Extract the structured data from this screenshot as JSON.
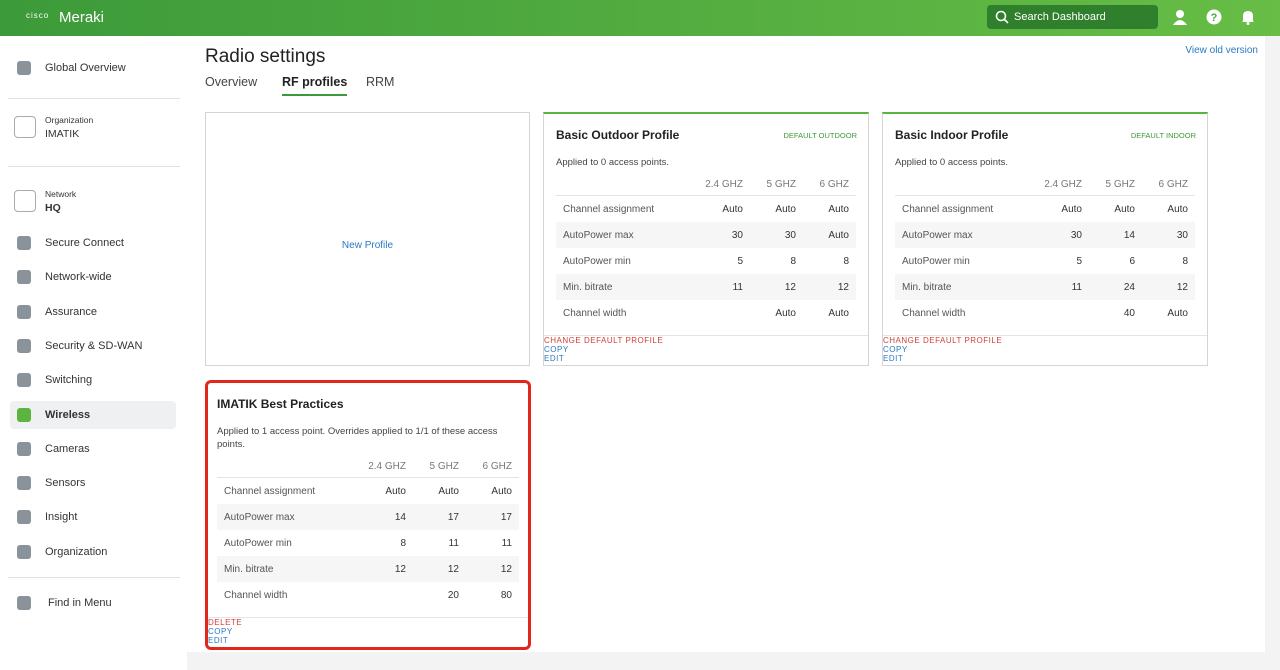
{
  "header": {
    "logo": "cisco",
    "brand": "Meraki",
    "search": "Search Dashboard"
  },
  "sidebar": {
    "top": "Global Overview",
    "org_label": "Organization",
    "org_name": "IMATIK",
    "net_label": "Network",
    "net_name": "HQ",
    "items": [
      "Secure Connect",
      "Network-wide",
      "Assurance",
      "Security & SD-WAN",
      "Switching",
      "Wireless",
      "Cameras",
      "Sensors",
      "Insight",
      "Organization"
    ],
    "active": 5,
    "find": "Find in Menu"
  },
  "page": {
    "title": "Radio settings",
    "view_old": "View old version",
    "tabs": [
      "Overview",
      "RF profiles",
      "RRM"
    ],
    "active_tab": 1,
    "new_profile": "New Profile"
  },
  "profiles": [
    {
      "name": "Basic Outdoor Profile",
      "badge": "DEFAULT OUTDOOR",
      "applied": "Applied to 0 access points.",
      "columns": [
        "2.4 GHZ",
        "5 GHZ",
        "6 GHZ"
      ],
      "rows": [
        {
          "label": "Channel assignment",
          "values": [
            "Auto",
            "Auto",
            "Auto"
          ]
        },
        {
          "label": "AutoPower max",
          "values": [
            30,
            30,
            "Auto"
          ]
        },
        {
          "label": "AutoPower min",
          "values": [
            5,
            8,
            8
          ]
        },
        {
          "label": "Min. bitrate",
          "values": [
            11,
            12,
            12
          ]
        },
        {
          "label": "Channel width",
          "values": [
            null,
            "Auto",
            "Auto"
          ]
        }
      ],
      "actions": [
        "CHANGE DEFAULT PROFILE",
        "COPY",
        "EDIT"
      ]
    },
    {
      "name": "Basic Indoor Profile",
      "badge": "DEFAULT INDOOR",
      "applied": "Applied to 0 access points.",
      "columns": [
        "2.4 GHZ",
        "5 GHZ",
        "6 GHZ"
      ],
      "rows": [
        {
          "label": "Channel assignment",
          "values": [
            "Auto",
            "Auto",
            "Auto"
          ]
        },
        {
          "label": "AutoPower max",
          "values": [
            30,
            14,
            30
          ]
        },
        {
          "label": "AutoPower min",
          "values": [
            5,
            6,
            8
          ]
        },
        {
          "label": "Min. bitrate",
          "values": [
            11,
            24,
            12
          ]
        },
        {
          "label": "Channel width",
          "values": [
            null,
            40,
            "Auto"
          ]
        }
      ],
      "actions": [
        "CHANGE DEFAULT PROFILE",
        "COPY",
        "EDIT"
      ]
    },
    {
      "name": "IMATIK Best Practices",
      "badge": null,
      "applied": "Applied to 1 access point. Overrides applied to 1/1 of these access points.",
      "columns": [
        "2.4 GHZ",
        "5 GHZ",
        "6 GHZ"
      ],
      "rows": [
        {
          "label": "Channel assignment",
          "values": [
            "Auto",
            "Auto",
            "Auto"
          ]
        },
        {
          "label": "AutoPower max",
          "values": [
            14,
            17,
            17
          ]
        },
        {
          "label": "AutoPower min",
          "values": [
            8,
            11,
            11
          ]
        },
        {
          "label": "Min. bitrate",
          "values": [
            12,
            12,
            12
          ]
        },
        {
          "label": "Channel width",
          "values": [
            null,
            20,
            80
          ]
        }
      ],
      "actions": [
        "DELETE",
        "COPY",
        "EDIT"
      ]
    }
  ]
}
